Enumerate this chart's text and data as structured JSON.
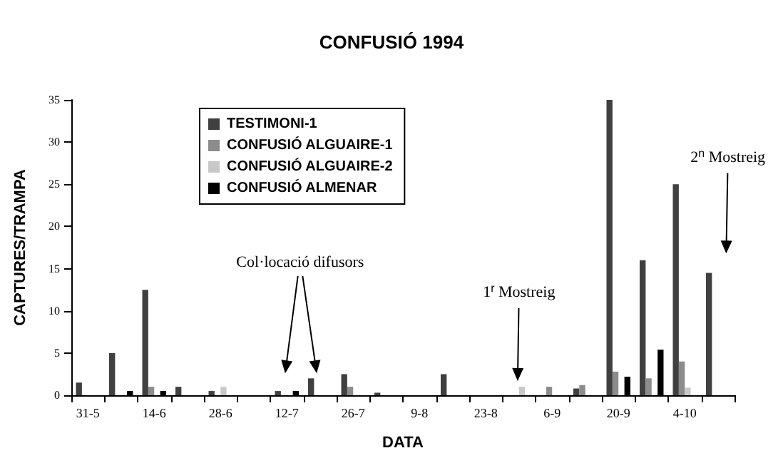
{
  "chart_data": {
    "type": "bar",
    "title": "CONFUSIÓ 1994",
    "xlabel": "DATA",
    "ylabel": "CAPTURES/TRAMPA",
    "categories": [
      "31-5",
      null,
      "14-6",
      null,
      "28-6",
      null,
      "12-7",
      null,
      "26-7",
      null,
      "9-8",
      null,
      "23-8",
      null,
      "6-9",
      null,
      "20-9",
      null,
      "4-10",
      null
    ],
    "series": [
      {
        "name": "TESTIMONI-1",
        "color": "#404040",
        "values": [
          1.5,
          5,
          12.5,
          1,
          0.5,
          null,
          0.5,
          2,
          2.5,
          0.3,
          null,
          2.5,
          null,
          null,
          null,
          0.8,
          35,
          16,
          25,
          14.5
        ]
      },
      {
        "name": "CONFUSIÓ ALGUAIRE-1",
        "color": "#8c8c8c",
        "values": [
          null,
          null,
          1,
          null,
          null,
          null,
          null,
          null,
          1,
          null,
          null,
          null,
          null,
          null,
          1,
          1.2,
          2.8,
          2,
          4,
          null
        ]
      },
      {
        "name": "CONFUSIÓ ALGUAIRE-2",
        "color": "#c8c8c8",
        "values": [
          null,
          null,
          null,
          null,
          1,
          null,
          null,
          null,
          null,
          null,
          null,
          null,
          null,
          1,
          null,
          null,
          null,
          null,
          0.9,
          null
        ]
      },
      {
        "name": "CONFUSIÓ ALMENAR",
        "color": "#000000",
        "values": [
          null,
          0.5,
          0.5,
          null,
          null,
          null,
          0.5,
          null,
          null,
          null,
          null,
          null,
          null,
          null,
          null,
          null,
          2.2,
          5.4,
          null,
          null
        ]
      }
    ],
    "ylim": [
      0,
      35
    ],
    "yticks": [
      0,
      5,
      10,
      15,
      20,
      25,
      30,
      35
    ],
    "grid": false,
    "legend": "top left",
    "annotations": [
      "Col·locació difusors",
      "1$^{r}$ Mostreig",
      "2$^{n}$ Mostreig"
    ]
  }
}
